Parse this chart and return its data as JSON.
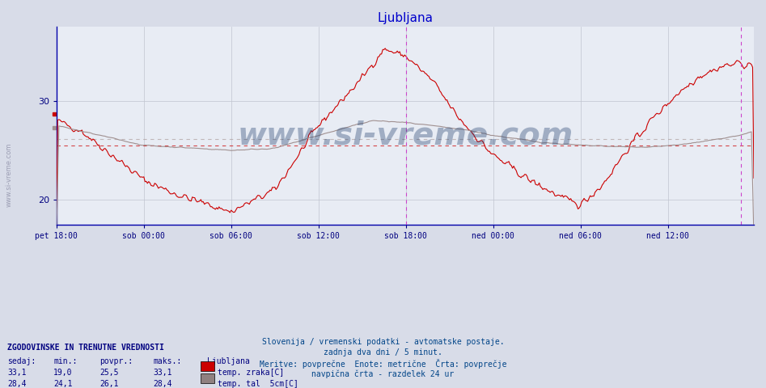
{
  "title": "Ljubljana",
  "title_color": "#0000cc",
  "bg_color": "#d8dce8",
  "plot_bg_color": "#e8ecf4",
  "grid_color": "#c0c4d0",
  "line1_color": "#cc0000",
  "line2_color": "#a09090",
  "avg1_color": "#cc0000",
  "avg2_color": "#b0a0a0",
  "vline_color": "#cc44cc",
  "xlabel_color": "#000080",
  "ylabel_color": "#000080",
  "tick_label_color": "#000080",
  "xlabels": [
    "pet 18:00",
    "sob 00:00",
    "sob 06:00",
    "sob 12:00",
    "sob 18:00",
    "ned 00:00",
    "ned 06:00",
    "ned 12:00"
  ],
  "xtick_positions": [
    0,
    72,
    144,
    216,
    288,
    360,
    432,
    504
  ],
  "ylim": [
    17.5,
    37.5
  ],
  "yticks": [
    20,
    30
  ],
  "avg1_y": 25.5,
  "avg2_y": 26.1,
  "vline_positions": [
    288,
    564
  ],
  "total_points": 576,
  "footer_lines": [
    "Slovenija / vremenski podatki - avtomatske postaje.",
    "zadnja dva dni / 5 minut.",
    "Meritve: povprečne  Enote: metrične  Črta: povprečje",
    "navpična črta - razdelek 24 ur"
  ],
  "legend_title": "ZGODOVINSKE IN TRENUTNE VREDNOSTI",
  "legend_headers": [
    "sedaj:",
    "min.:",
    "povpr.:",
    "maks.:"
  ],
  "legend_row1": [
    "33,1",
    "19,0",
    "25,5",
    "33,1",
    "temp. zraka[C]"
  ],
  "legend_row2": [
    "28,4",
    "24,1",
    "26,1",
    "28,4",
    "temp. tal  5cm[C]"
  ],
  "legend_color1": "#cc0000",
  "legend_color2": "#908080",
  "watermark": "www.si-vreme.com",
  "watermark_color": "#1a3a6a",
  "watermark_alpha": 0.35,
  "sidebar_text": "www.si-vreme.com",
  "sidebar_color": "#606080",
  "sidebar_alpha": 0.5
}
